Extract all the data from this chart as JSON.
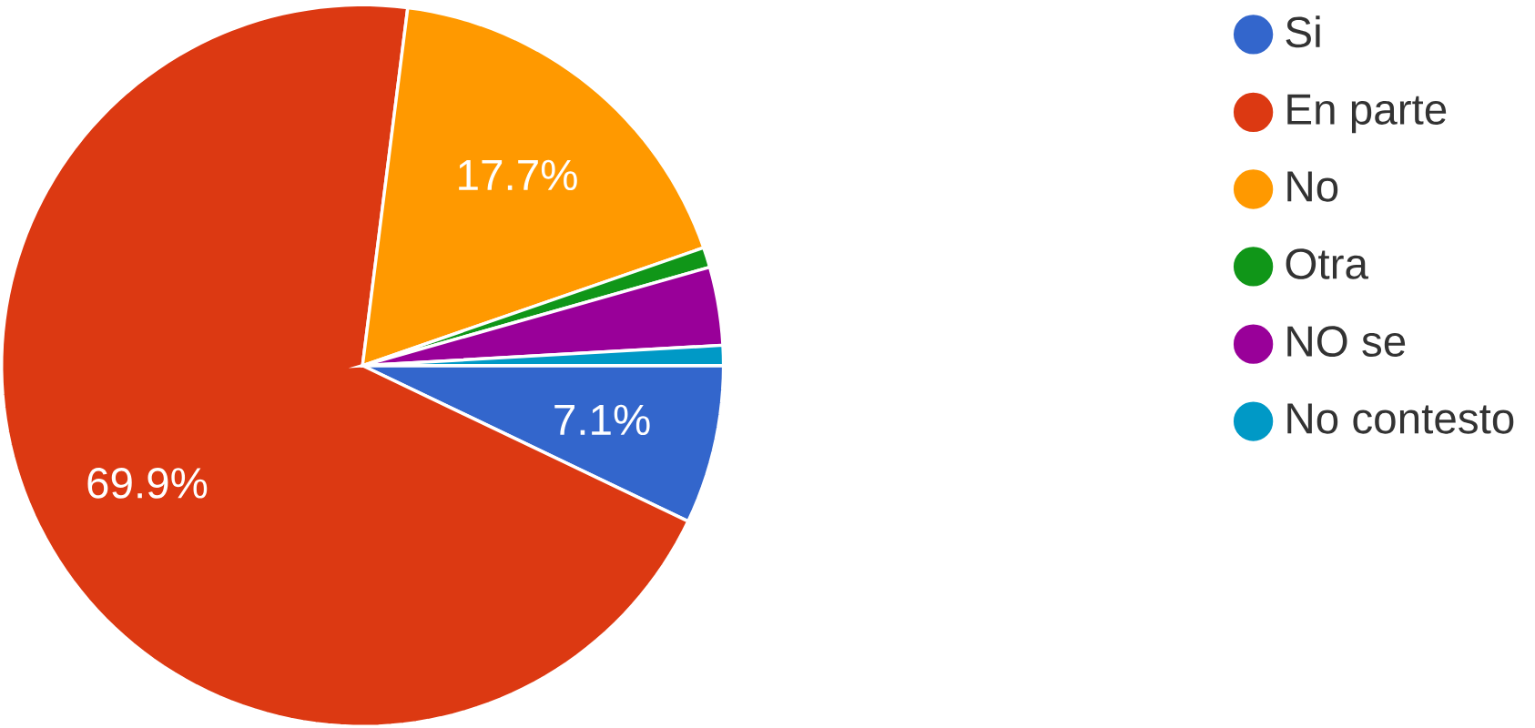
{
  "chart_data": {
    "type": "pie",
    "categories": [
      "Si",
      "En parte",
      "No",
      "Otra",
      "NO se",
      "No contesto"
    ],
    "values": [
      7.1,
      69.9,
      17.7,
      0.9,
      3.5,
      0.9
    ],
    "colors": [
      "#3366cc",
      "#dc3912",
      "#ff9900",
      "#109618",
      "#990099",
      "#0099c6"
    ],
    "value_labels": [
      "7.1%",
      "69.9%",
      "17.7%",
      null,
      null,
      null
    ],
    "legend": "top right"
  }
}
